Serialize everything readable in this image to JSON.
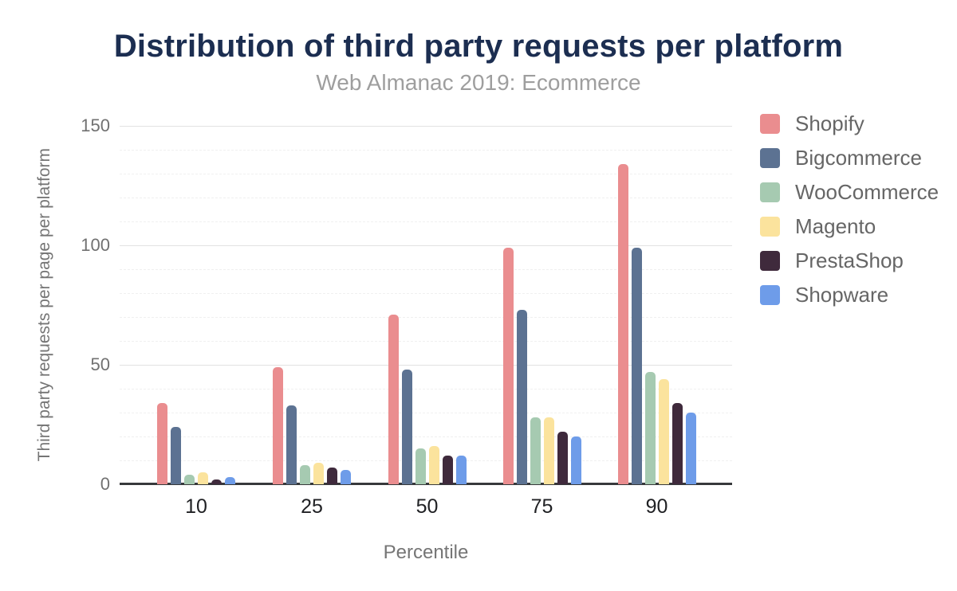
{
  "title": "Distribution of third party requests per platform",
  "subtitle": "Web Almanac 2019: Ecommerce",
  "colors": {
    "title_text": "#1c2e51",
    "subtitle_text": "#9e9e9e",
    "axis_line": "#37393b",
    "grid_major": "#e2e2e2",
    "grid_minor": "#f0f0f0",
    "y_tick_text": "#717171",
    "x_tick_text": "#202124",
    "axis_title_text": "#757575",
    "legend_label_text": "#666666"
  },
  "chart_data": {
    "type": "bar",
    "title": "Distribution of third party requests per platform",
    "subtitle": "Web Almanac 2019: Ecommerce",
    "categories": [
      "10",
      "25",
      "50",
      "75",
      "90"
    ],
    "series": [
      {
        "name": "Shopify",
        "color": "#ea8d8f",
        "values": [
          34,
          49,
          71,
          99,
          134
        ]
      },
      {
        "name": "Bigcommerce",
        "color": "#5c7292",
        "values": [
          24,
          33,
          48,
          73,
          99
        ]
      },
      {
        "name": "WooCommerce",
        "color": "#a6cab1",
        "values": [
          4,
          8,
          15,
          28,
          47
        ]
      },
      {
        "name": "Magento",
        "color": "#fbe39d",
        "values": [
          5,
          9,
          16,
          28,
          44
        ]
      },
      {
        "name": "PrestaShop",
        "color": "#3f2a3c",
        "values": [
          2,
          7,
          12,
          22,
          34
        ]
      },
      {
        "name": "Shopware",
        "color": "#6e9ce9",
        "values": [
          3,
          6,
          12,
          20,
          30
        ]
      }
    ],
    "xlabel": "Percentile",
    "ylabel": "Third party requests per page per platform",
    "ylim": [
      0,
      150
    ],
    "y_ticks": [
      0,
      50,
      100,
      150
    ],
    "y_minor_step": 10,
    "grid": true,
    "legend_position": "right"
  }
}
